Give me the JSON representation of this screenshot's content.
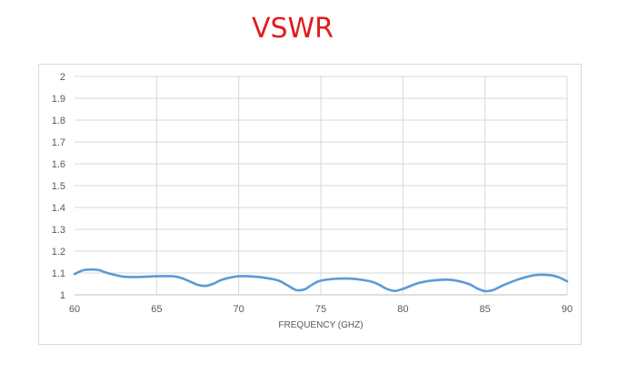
{
  "chart_data": {
    "type": "line",
    "title": "VSWR",
    "xlabel": "FREQUENCY (GHZ)",
    "ylabel": "",
    "xlim": [
      60,
      90
    ],
    "ylim": [
      1,
      2
    ],
    "x_ticks": [
      "60",
      "65",
      "70",
      "75",
      "80",
      "85",
      "90"
    ],
    "y_ticks": [
      "1",
      "1.1",
      "1.2",
      "1.3",
      "1.4",
      "1.5",
      "1.6",
      "1.7",
      "1.8",
      "1.9",
      "2"
    ],
    "grid": true,
    "legend": "none",
    "line_color": "#5b9bd5",
    "series": [
      {
        "x": [
          60,
          60.5,
          61,
          61.5,
          62,
          63,
          64,
          65,
          66,
          66.5,
          67,
          67.5,
          68,
          68.5,
          69,
          70,
          71,
          72,
          72.5,
          73,
          73.5,
          74,
          74.5,
          75,
          76,
          77,
          78,
          78.5,
          79,
          79.5,
          80,
          81,
          82,
          83,
          84,
          84.5,
          85,
          85.5,
          86,
          87,
          88,
          89,
          89.5,
          90
        ],
        "y": [
          1.095,
          1.112,
          1.116,
          1.113,
          1.1,
          1.083,
          1.082,
          1.085,
          1.085,
          1.077,
          1.062,
          1.046,
          1.041,
          1.052,
          1.07,
          1.085,
          1.083,
          1.073,
          1.063,
          1.042,
          1.022,
          1.025,
          1.048,
          1.065,
          1.074,
          1.073,
          1.062,
          1.048,
          1.028,
          1.018,
          1.027,
          1.055,
          1.067,
          1.068,
          1.05,
          1.03,
          1.017,
          1.022,
          1.04,
          1.07,
          1.09,
          1.09,
          1.08,
          1.062
        ]
      }
    ]
  }
}
